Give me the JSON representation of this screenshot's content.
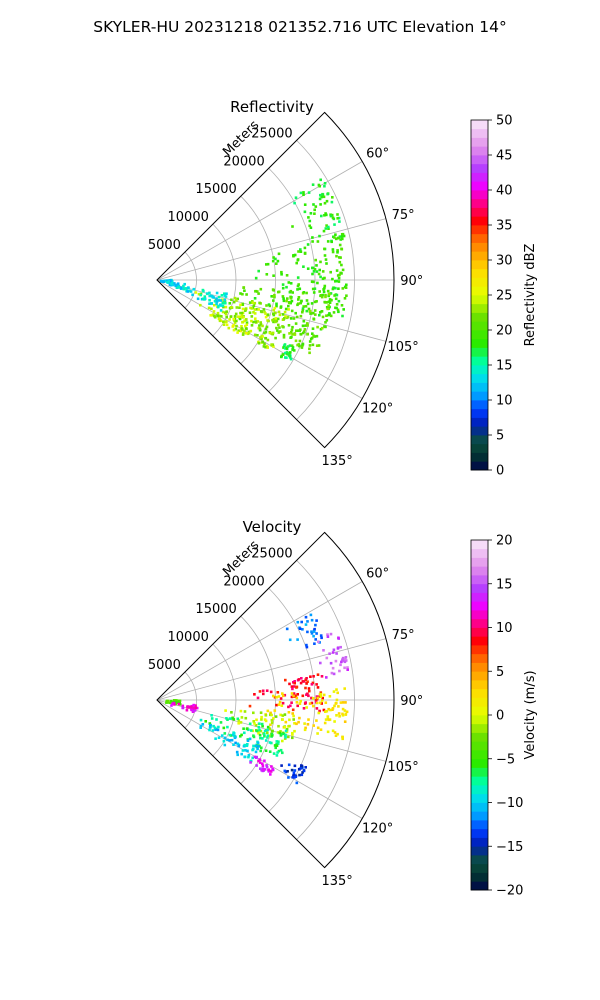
{
  "figure": {
    "title": "SKYLER-HU  20231218  021352.716 UTC Elevation 14°"
  },
  "chart_data": [
    {
      "type": "heatmap",
      "projection": "polar-sector",
      "title": "Reflectivity",
      "radial_label": "Meters",
      "range_ticks": [
        5000,
        10000,
        15000,
        20000,
        25000
      ],
      "range_max_m": 30000,
      "azimuth_range_deg": [
        45,
        135
      ],
      "azimuth_ticks_deg": [
        60,
        75,
        90,
        105,
        120,
        135
      ],
      "azimuth_tick_labels": [
        "60°",
        "75°",
        "90°",
        "105°",
        "120°",
        "135°"
      ],
      "grid": true,
      "colorbar": {
        "label": "Reflectivity dBZ",
        "range": [
          0,
          50
        ],
        "ticks": [
          0,
          5,
          10,
          15,
          20,
          25,
          30,
          35,
          40,
          45,
          50
        ],
        "tick_labels": [
          "0",
          "5",
          "10",
          "15",
          "20",
          "25",
          "30",
          "35",
          "40",
          "45",
          "50"
        ],
        "placement": "right"
      },
      "echo_regions": [
        {
          "az": [
            58,
            78
          ],
          "r": [
            18000,
            24500
          ],
          "value": 18
        },
        {
          "az": [
            76,
            102
          ],
          "r": [
            12000,
            24000
          ],
          "value": 19
        },
        {
          "az": [
            94,
            116
          ],
          "r": [
            8000,
            22000
          ],
          "value": 21
        },
        {
          "az": [
            102,
            122
          ],
          "r": [
            4000,
            17000
          ],
          "value": 23
        },
        {
          "az": [
            112,
            124
          ],
          "r": [
            7000,
            13000
          ],
          "value": 24
        },
        {
          "az": [
            100,
            115
          ],
          "r": [
            3000,
            9000
          ],
          "value": 14
        },
        {
          "az": [
            95,
            110
          ],
          "r": [
            800,
            4000
          ],
          "value": 13
        },
        {
          "az": [
            84,
            96
          ],
          "r": [
            150,
            1800
          ],
          "value": 12
        },
        {
          "az": [
            116,
            122
          ],
          "r": [
            17500,
            19500
          ],
          "value": 17
        }
      ]
    },
    {
      "type": "heatmap",
      "projection": "polar-sector",
      "title": "Velocity",
      "radial_label": "Meters",
      "range_ticks": [
        5000,
        10000,
        15000,
        20000,
        25000
      ],
      "range_max_m": 30000,
      "azimuth_range_deg": [
        45,
        135
      ],
      "azimuth_ticks_deg": [
        60,
        75,
        90,
        105,
        120,
        135
      ],
      "azimuth_tick_labels": [
        "60°",
        "75°",
        "90°",
        "105°",
        "120°",
        "135°"
      ],
      "grid": true,
      "colorbar": {
        "label": "Velocity (m/s)",
        "range": [
          -20,
          20
        ],
        "ticks": [
          -20,
          -15,
          -10,
          -5,
          0,
          5,
          10,
          15,
          20
        ],
        "tick_labels": [
          "−20",
          "−15",
          "−10",
          "−5",
          "0",
          "5",
          "10",
          "15",
          "20"
        ],
        "placement": "right"
      },
      "echo_regions": [
        {
          "az": [
            60,
            70
          ],
          "r": [
            18000,
            22500
          ],
          "value": -12
        },
        {
          "az": [
            68,
            82
          ],
          "r": [
            20000,
            24500
          ],
          "value": 15
        },
        {
          "az": [
            80,
            94
          ],
          "r": [
            11000,
            21000
          ],
          "value": 9
        },
        {
          "az": [
            86,
            102
          ],
          "r": [
            13000,
            24000
          ],
          "value": 2
        },
        {
          "az": [
            96,
            108
          ],
          "r": [
            8000,
            18000
          ],
          "value": -1
        },
        {
          "az": [
            102,
            116
          ],
          "r": [
            6000,
            17000
          ],
          "value": -7
        },
        {
          "az": [
            112,
            124
          ],
          "r": [
            5000,
            14000
          ],
          "value": -10
        },
        {
          "az": [
            119,
            124
          ],
          "r": [
            13000,
            17000
          ],
          "value": 13
        },
        {
          "az": [
            114,
            121
          ],
          "r": [
            17500,
            20500
          ],
          "value": -14
        },
        {
          "az": [
            86,
            100
          ],
          "r": [
            200,
            2800
          ],
          "value": -4
        },
        {
          "az": [
            96,
            108
          ],
          "r": [
            1500,
            5000
          ],
          "value": 12
        }
      ]
    }
  ]
}
